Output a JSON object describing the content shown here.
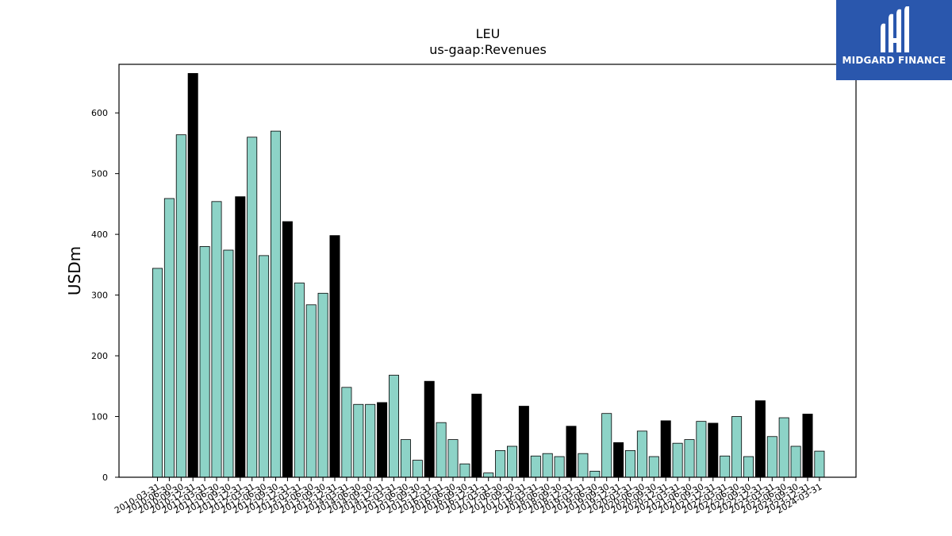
{
  "chart_data": {
    "type": "bar",
    "title": "LEU",
    "subtitle": "us-gaap:Revenues",
    "ylabel": "USDm",
    "xlabel": "",
    "ylim": [
      0,
      680
    ],
    "yticks": [
      0,
      100,
      200,
      300,
      400,
      500,
      600
    ],
    "grid": false,
    "colors": {
      "regular": "#8dd3c7",
      "highlight": "#000000",
      "edge": "#000000"
    },
    "highlight_rule": "fiscal year-end quarters (Q4, *-12-31) drawn black",
    "categories": [
      "2010-03-31",
      "2010-06-30",
      "2010-09-30",
      "2010-12-31",
      "2011-03-31",
      "2011-06-30",
      "2011-09-30",
      "2011-12-31",
      "2012-03-31",
      "2012-06-30",
      "2012-09-30",
      "2012-12-31",
      "2013-03-31",
      "2013-06-30",
      "2013-09-30",
      "2013-12-31",
      "2014-03-31",
      "2014-06-30",
      "2014-09-30",
      "2014-12-31",
      "2015-03-31",
      "2015-06-30",
      "2015-09-30",
      "2015-12-31",
      "2016-03-31",
      "2016-06-30",
      "2016-09-30",
      "2016-12-31",
      "2017-03-31",
      "2017-06-30",
      "2017-09-30",
      "2017-12-31",
      "2018-03-31",
      "2018-06-30",
      "2018-09-30",
      "2018-12-31",
      "2019-03-31",
      "2019-06-30",
      "2019-09-30",
      "2019-12-31",
      "2020-03-31",
      "2020-06-30",
      "2020-09-30",
      "2020-12-31",
      "2021-03-31",
      "2021-06-30",
      "2021-09-30",
      "2021-12-31",
      "2022-03-31",
      "2022-06-30",
      "2022-09-30",
      "2022-12-31",
      "2023-03-31",
      "2023-06-30",
      "2023-09-30",
      "2023-12-31",
      "2024-03-31"
    ],
    "values": [
      344,
      459,
      564,
      665,
      380,
      454,
      374,
      462,
      560,
      365,
      570,
      421,
      320,
      284,
      303,
      398,
      148,
      120,
      120,
      123,
      168,
      62,
      28,
      158,
      90,
      62,
      22,
      137,
      7,
      44,
      51,
      117,
      35,
      39,
      34,
      84,
      39,
      10,
      105,
      57,
      44,
      76,
      34,
      93,
      56,
      62,
      92,
      89,
      35,
      100,
      34,
      126,
      67,
      98,
      51,
      104,
      43
    ],
    "highlight": [
      false,
      false,
      false,
      true,
      false,
      false,
      false,
      true,
      false,
      false,
      false,
      true,
      false,
      false,
      false,
      true,
      false,
      false,
      false,
      true,
      false,
      false,
      false,
      true,
      false,
      false,
      false,
      true,
      false,
      false,
      false,
      true,
      false,
      false,
      false,
      true,
      false,
      false,
      false,
      true,
      false,
      false,
      false,
      true,
      false,
      false,
      false,
      true,
      false,
      false,
      false,
      true,
      false,
      false,
      false,
      true,
      false
    ]
  },
  "logo": {
    "text": "MIDGARD FINANCE",
    "background": "#2a57ad"
  }
}
